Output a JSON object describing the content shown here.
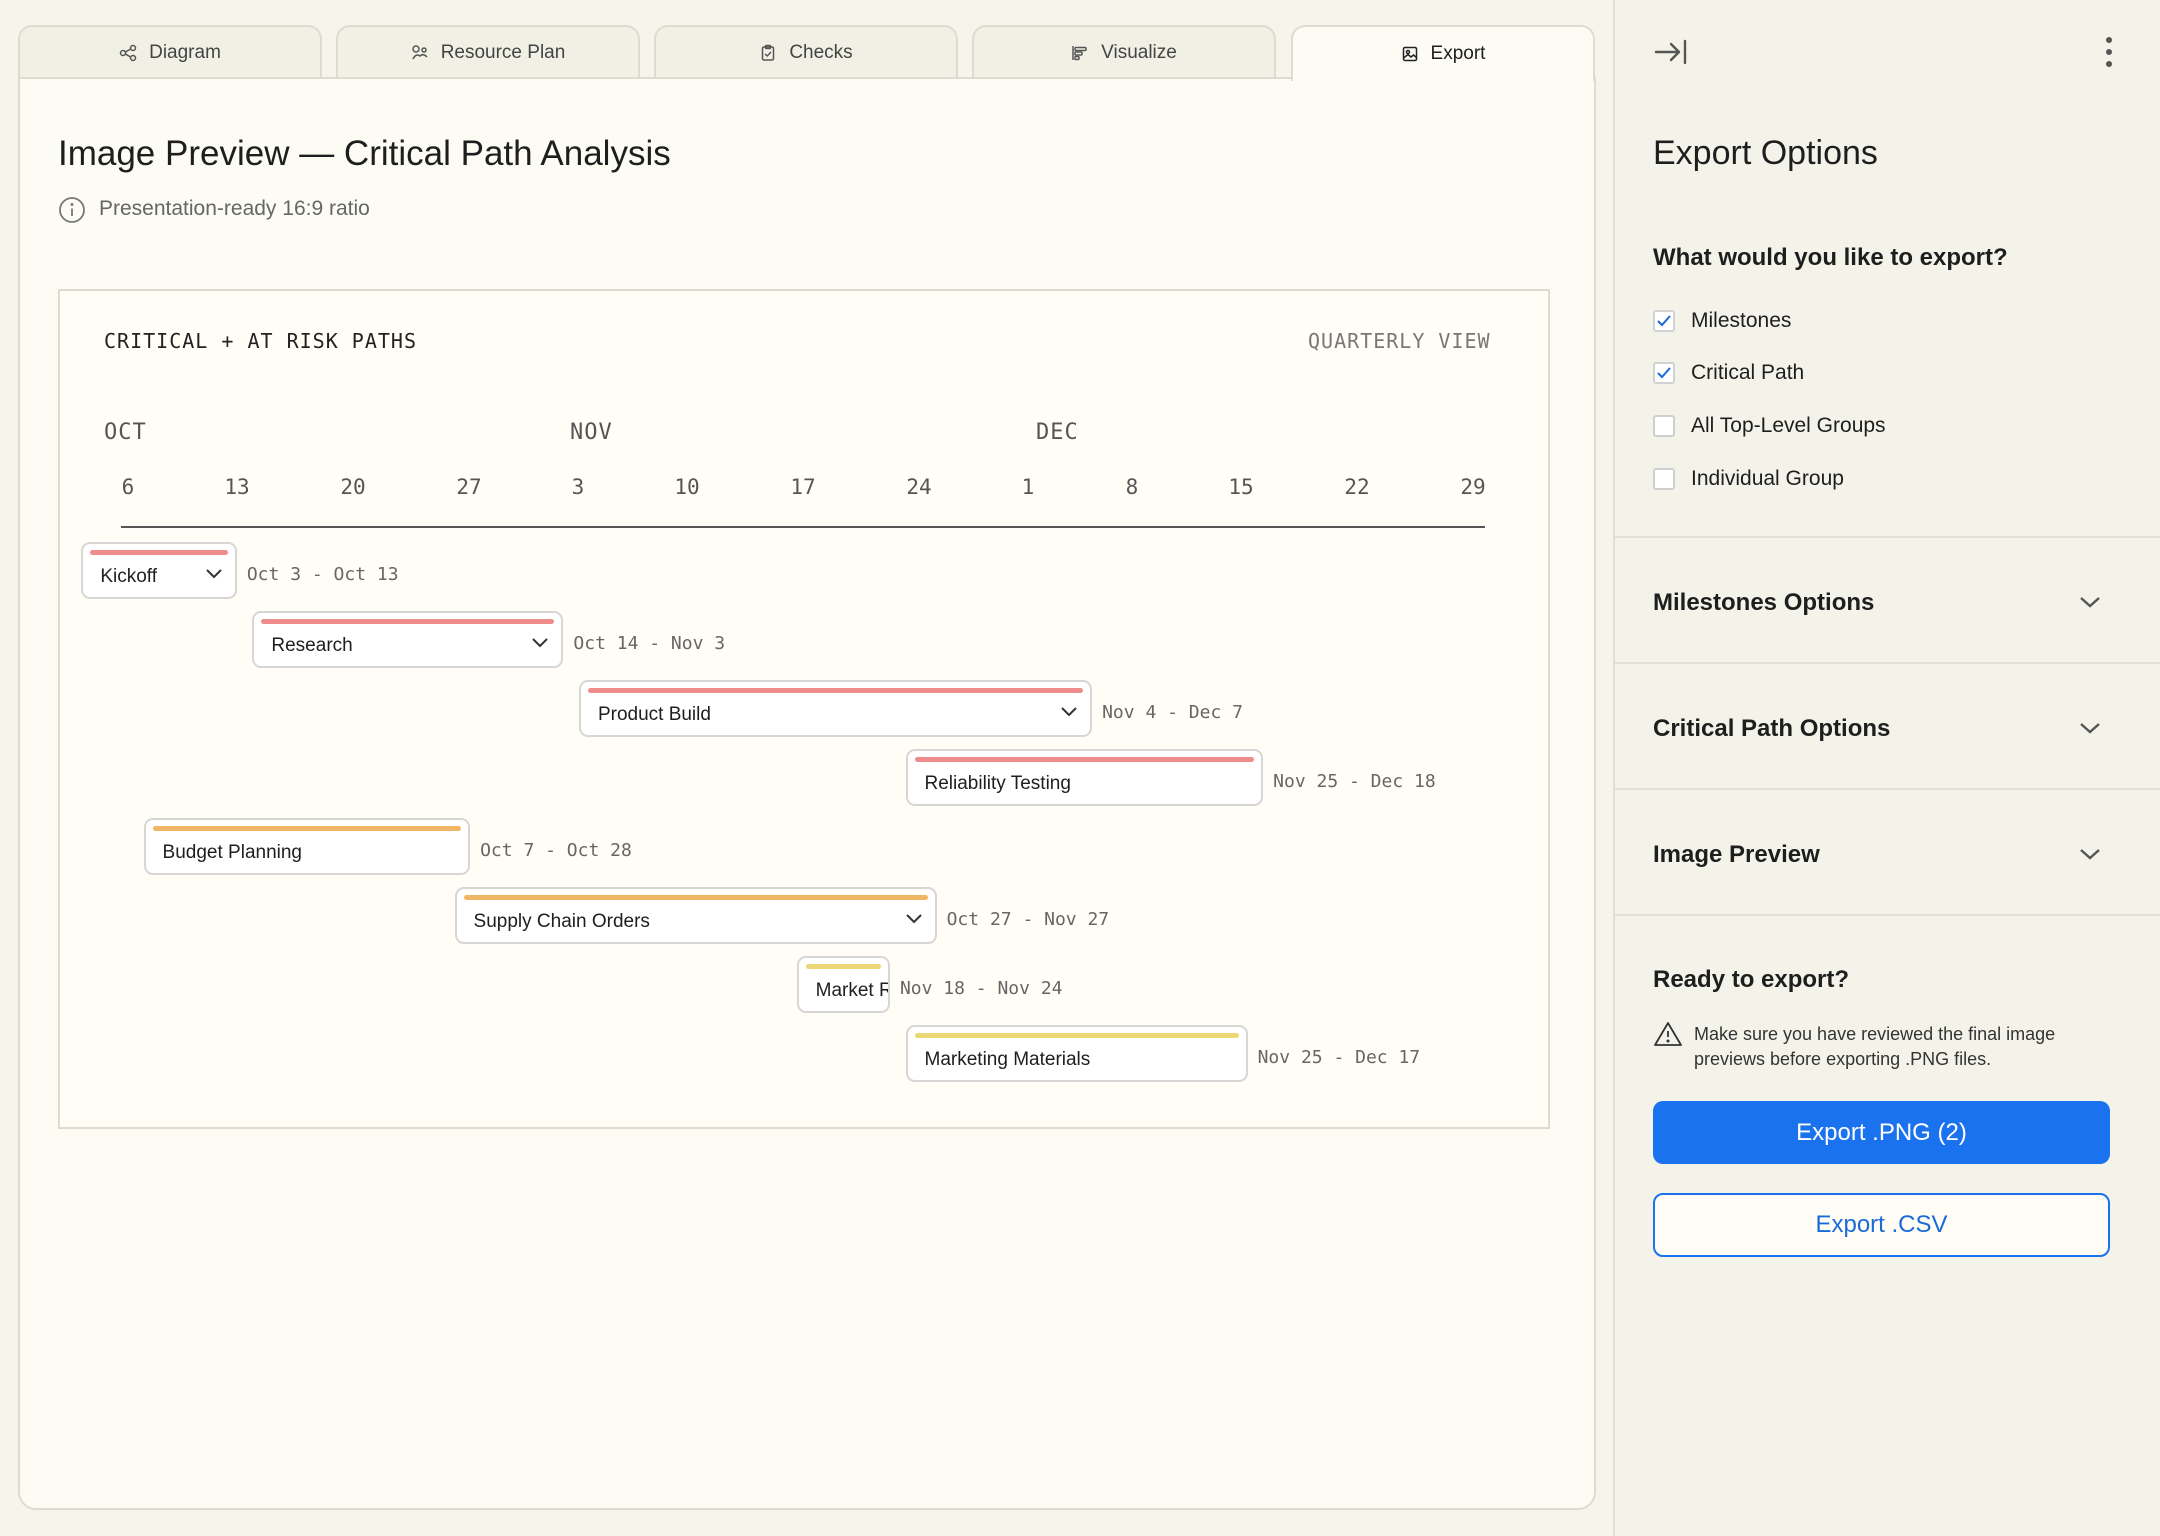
{
  "tabs": [
    {
      "label": "Diagram"
    },
    {
      "label": "Resource Plan"
    },
    {
      "label": "Checks"
    },
    {
      "label": "Visualize"
    },
    {
      "label": "Export"
    }
  ],
  "main": {
    "title": "Image Preview — Critical Path Analysis",
    "subtitle": "Presentation-ready 16:9 ratio"
  },
  "chart": {
    "left_label": "CRITICAL + AT RISK PATHS",
    "right_label": "QUARTERLY VIEW",
    "months": [
      "OCT",
      "NOV",
      "DEC"
    ],
    "ticks": [
      "6",
      "13",
      "20",
      "27",
      "3",
      "10",
      "17",
      "24",
      "1",
      "8",
      "15",
      "22",
      "29"
    ],
    "colors": {
      "critical": "#ee8b8b",
      "at_risk": "#f0b565",
      "watch": "#ecd777"
    }
  },
  "chart_data": {
    "type": "gantt",
    "title": "CRITICAL + AT RISK PATHS",
    "view": "QUARTERLY VIEW",
    "tasks": [
      {
        "name": "Kickoff",
        "range": "Oct 3 - Oct 13",
        "start": "Oct 3",
        "end": "Oct 13",
        "color": "#ee8b8b",
        "expandable": true
      },
      {
        "name": "Research",
        "range": "Oct 14 - Nov 3",
        "start": "Oct 14",
        "end": "Nov 3",
        "color": "#ee8b8b",
        "expandable": true
      },
      {
        "name": "Product Build",
        "range": "Nov 4 - Dec 7",
        "start": "Nov 4",
        "end": "Dec 7",
        "color": "#ee8b8b",
        "expandable": true
      },
      {
        "name": "Reliability Testing",
        "range": "Nov 25 - Dec 18",
        "start": "Nov 25",
        "end": "Dec 18",
        "color": "#ee8b8b",
        "expandable": false
      },
      {
        "name": "Budget Planning",
        "range": "Oct 7 - Oct 28",
        "start": "Oct 7",
        "end": "Oct 28",
        "color": "#f0b565",
        "expandable": false
      },
      {
        "name": "Supply Chain Orders",
        "range": "Oct 27 - Nov 27",
        "start": "Oct 27",
        "end": "Nov 27",
        "color": "#f0b565",
        "expandable": true
      },
      {
        "name": "Market Research",
        "range": "Nov 18 - Nov 24",
        "start": "Nov 18",
        "end": "Nov 24",
        "color": "#ecd777",
        "expandable": false
      },
      {
        "name": "Marketing Materials",
        "range": "Nov 25 - Dec 17",
        "start": "Nov 25",
        "end": "Dec 17",
        "color": "#ecd777",
        "expandable": false
      }
    ]
  },
  "sidebar": {
    "title": "Export Options",
    "question": "What would you like to export?",
    "options": [
      {
        "label": "Milestones",
        "checked": true
      },
      {
        "label": "Critical Path",
        "checked": true
      },
      {
        "label": "All Top-Level Groups",
        "checked": false
      },
      {
        "label": "Individual Group",
        "checked": false
      }
    ],
    "sections": [
      {
        "label": "Milestones Options"
      },
      {
        "label": "Critical Path Options"
      },
      {
        "label": "Image Preview"
      }
    ],
    "ready_title": "Ready to export?",
    "warning": "Make sure you have reviewed the final image previews before exporting .PNG files.",
    "export_png": "Export .PNG (2)",
    "export_csv": "Export .CSV"
  }
}
